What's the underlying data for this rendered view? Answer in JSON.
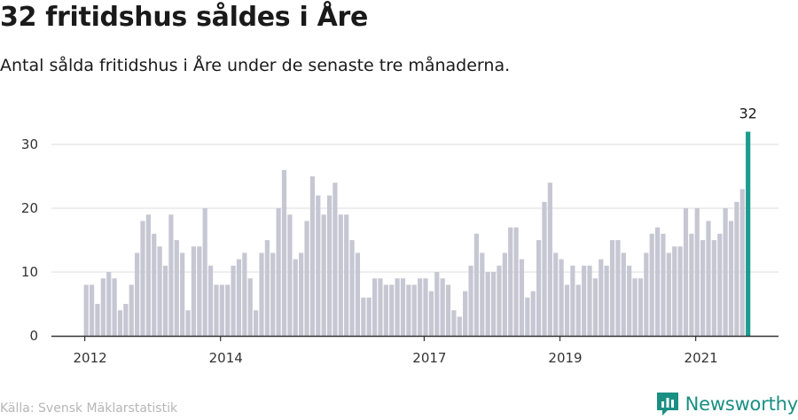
{
  "title": "32 fritidshus såldes i Åre",
  "subtitle": "Antal sålda fritidshus i Åre under de senaste tre månaderna.",
  "source": "Källa: Svensk Mäklarstatistik",
  "brand": {
    "name": "Newsworthy",
    "icon": "newsworthy-logo-icon",
    "color": "#1a8f83"
  },
  "colors": {
    "bar": "#c7c6d3",
    "highlight": "#1b9c8f",
    "grid": "#dddddd",
    "axis": "#333333"
  },
  "chart_data": {
    "type": "bar",
    "title": "32 fritidshus såldes i Åre",
    "subtitle": "Antal sålda fritidshus i Åre under de senaste tre månaderna.",
    "xlabel": "",
    "ylabel": "",
    "ylim": [
      0,
      30
    ],
    "yticks": [
      0,
      10,
      20,
      30
    ],
    "grid": true,
    "x_start": "2012-01",
    "x_ticks": [
      {
        "label": "2012",
        "index": 0
      },
      {
        "label": "2014",
        "index": 24
      },
      {
        "label": "2017",
        "index": 60
      },
      {
        "label": "2019",
        "index": 84
      },
      {
        "label": "2021",
        "index": 108
      }
    ],
    "values": [
      8,
      8,
      5,
      9,
      10,
      9,
      4,
      5,
      8,
      13,
      18,
      19,
      16,
      14,
      11,
      19,
      15,
      13,
      4,
      14,
      14,
      20,
      11,
      8,
      8,
      8,
      11,
      12,
      13,
      9,
      4,
      13,
      15,
      13,
      20,
      26,
      19,
      12,
      13,
      18,
      25,
      22,
      19,
      22,
      24,
      19,
      19,
      15,
      13,
      6,
      6,
      9,
      9,
      8,
      8,
      9,
      9,
      8,
      8,
      9,
      9,
      7,
      10,
      9,
      8,
      4,
      3,
      7,
      11,
      16,
      13,
      10,
      10,
      11,
      13,
      17,
      17,
      12,
      6,
      7,
      15,
      21,
      24,
      13,
      12,
      8,
      11,
      8,
      11,
      11,
      9,
      12,
      11,
      15,
      15,
      13,
      11,
      9,
      9,
      13,
      16,
      17,
      16,
      13,
      14,
      14,
      20,
      16,
      20,
      15,
      18,
      15,
      16,
      20,
      18,
      21,
      23,
      32
    ],
    "highlight": {
      "index": 117,
      "label": "32"
    }
  }
}
